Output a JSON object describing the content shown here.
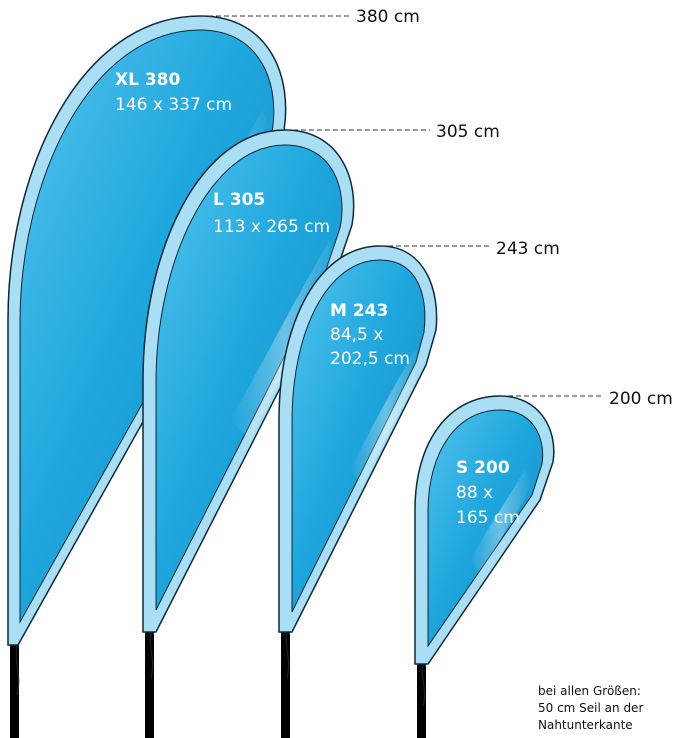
{
  "flags": [
    {
      "id": "xl",
      "name": "XL 380",
      "dims": [
        "146 x 337 cm"
      ],
      "height_label": "380 cm"
    },
    {
      "id": "l",
      "name": "L 305",
      "dims": [
        "113 x 265 cm"
      ],
      "height_label": "305 cm"
    },
    {
      "id": "m",
      "name": "M 243",
      "dims": [
        "84,5 x",
        "202,5 cm"
      ],
      "height_label": "243 cm"
    },
    {
      "id": "s",
      "name": "S 200",
      "dims": [
        "88 x",
        "165 cm"
      ],
      "height_label": "200 cm"
    }
  ],
  "note": [
    "bei allen Größen:",
    "50 cm Seil an der",
    "Nahtunterkante"
  ],
  "colors": {
    "fabric": "#1fa7dd",
    "fabric_dark": "#1185bb",
    "fabric_light": "#6ccdf0",
    "sleeve": "#a9def4",
    "outline": "#0b2a3c",
    "pole": "#000000"
  }
}
